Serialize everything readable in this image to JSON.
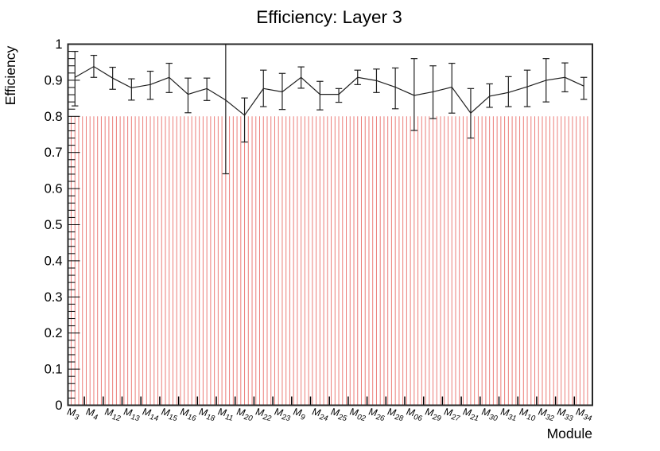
{
  "window": {
    "background": "#ffffff"
  },
  "colors": {
    "hatch_red": "#ec7d79",
    "series_black": "#1f1f1f",
    "frame": "#262626",
    "text": "#000000"
  },
  "chart_data": {
    "type": "line",
    "title": "Efficiency: Layer 3",
    "xlabel": "Module",
    "ylabel": "Efficiency",
    "ylim": [
      0,
      1
    ],
    "y_major_tick_step": 0.1,
    "y_minor_tick_step": 0.02,
    "y_tick_labels": [
      "0",
      "0.1",
      "0.2",
      "0.3",
      "0.4",
      "0.5",
      "0.6",
      "0.7",
      "0.8",
      "0.9",
      "1"
    ],
    "grid": false,
    "legend": false,
    "categories": [
      "M3",
      "M4",
      "M12",
      "M13",
      "M14",
      "M15",
      "M16",
      "M18",
      "M11",
      "M20",
      "M22",
      "M23",
      "M9",
      "M24",
      "M25",
      "M02",
      "M26",
      "M28",
      "M06",
      "M29",
      "M27",
      "M21",
      "M30",
      "M31",
      "M10",
      "M32",
      "M33",
      "M34"
    ],
    "series": [
      {
        "name": "efficiency-per-module",
        "style": "line_with_error_bars",
        "color": "#1f1f1f",
        "values": [
          0.908,
          0.938,
          0.906,
          0.879,
          0.888,
          0.908,
          0.861,
          0.877,
          0.845,
          0.803,
          0.877,
          0.868,
          0.908,
          0.861,
          0.861,
          0.908,
          0.899,
          0.881,
          0.858,
          0.868,
          0.881,
          0.809,
          0.856,
          0.866,
          0.882,
          0.9,
          0.908,
          0.884
        ],
        "err_up": [
          0.072,
          0.031,
          0.03,
          0.025,
          0.037,
          0.039,
          0.045,
          0.029,
          0.155,
          0.048,
          0.051,
          0.051,
          0.029,
          0.036,
          0.016,
          0.02,
          0.032,
          0.053,
          0.102,
          0.072,
          0.066,
          0.068,
          0.034,
          0.044,
          0.046,
          0.06,
          0.04,
          0.024
        ],
        "err_down": [
          0.079,
          0.03,
          0.031,
          0.034,
          0.041,
          0.042,
          0.051,
          0.033,
          0.204,
          0.074,
          0.05,
          0.049,
          0.03,
          0.043,
          0.022,
          0.02,
          0.033,
          0.06,
          0.097,
          0.074,
          0.072,
          0.069,
          0.031,
          0.039,
          0.055,
          0.06,
          0.04,
          0.037
        ]
      }
    ],
    "band": {
      "name": "threshold-hatch-band",
      "style": "vertical_hatch",
      "color": "#ec7d79",
      "y_from": 0,
      "y_to": 0.8,
      "lines_per_bin": 5
    }
  }
}
